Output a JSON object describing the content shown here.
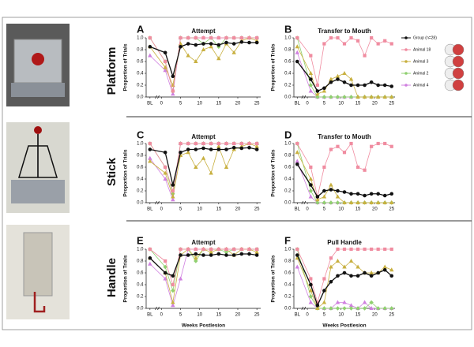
{
  "rows": [
    "Platform",
    "Stick",
    "Handle"
  ],
  "legend": [
    {
      "name": "Group (n=28)",
      "color": "#111111"
    },
    {
      "name": "Animal 18",
      "color": "#f08ca0"
    },
    {
      "name": "Animal 3",
      "color": "#c8b040"
    },
    {
      "name": "Animal 2",
      "color": "#90d070"
    },
    {
      "name": "Animal 4",
      "color": "#d080e0"
    }
  ],
  "chart_data": [
    {
      "type": "line",
      "panel": "A",
      "title": "Attempt",
      "ylabel": "Proportion of Trials",
      "x": [
        -3,
        1,
        3,
        5,
        7,
        9,
        11,
        13,
        15,
        17,
        19,
        21,
        23,
        25
      ],
      "xlim": [
        -4,
        26
      ],
      "xticks": [
        {
          "value": -3,
          "label": "BL"
        },
        0,
        5,
        10,
        15,
        20,
        25
      ],
      "ylim": [
        0,
        1
      ],
      "yticks": [
        {
          "value": 0,
          "label": "0.0"
        },
        {
          "value": 0.2,
          "label": "0.2"
        },
        {
          "value": 0.4,
          "label": "0.4"
        },
        {
          "value": 0.6,
          "label": "0.6"
        },
        {
          "value": 0.8,
          "label": "0.8"
        },
        {
          "value": 1,
          "label": "1.0"
        }
      ],
      "series": [
        {
          "values": [
            0.85,
            0.75,
            0.35,
            0.85,
            0.9,
            0.88,
            0.9,
            0.9,
            0.88,
            0.92,
            0.9,
            0.93,
            0.92,
            0.92
          ]
        },
        {
          "values": [
            1,
            0.6,
            0.1,
            1,
            1,
            1,
            1,
            1,
            1,
            1,
            1,
            1,
            1,
            1
          ]
        },
        {
          "values": [
            0.85,
            0.5,
            0.2,
            0.9,
            0.7,
            0.6,
            0.8,
            0.85,
            0.65,
            0.9,
            0.75,
            0.95,
            1,
            0.95
          ]
        },
        {
          "values": [
            1,
            0.6,
            0.1,
            1,
            1,
            1,
            0.9,
            1,
            0.85,
            1,
            1,
            1,
            1,
            1
          ]
        },
        {
          "values": [
            0.7,
            0.45,
            0.05,
            1,
            1,
            1,
            1,
            1,
            1,
            1,
            1,
            1,
            1,
            1
          ]
        }
      ]
    },
    {
      "type": "line",
      "panel": "B",
      "title": "Transfer to Mouth",
      "ylabel": "Proportion of Trials",
      "x": [
        -3,
        1,
        3,
        5,
        7,
        9,
        11,
        13,
        15,
        17,
        19,
        21,
        23,
        25
      ],
      "xlim": [
        -4,
        26
      ],
      "xticks": [
        {
          "value": -3,
          "label": "BL"
        },
        0,
        5,
        10,
        15,
        20,
        25
      ],
      "ylim": [
        0,
        1
      ],
      "yticks": [
        {
          "value": 0,
          "label": "0.0"
        },
        {
          "value": 0.2,
          "label": "0.2"
        },
        {
          "value": 0.4,
          "label": "0.4"
        },
        {
          "value": 0.6,
          "label": "0.6"
        },
        {
          "value": 0.8,
          "label": "0.8"
        },
        {
          "value": 1,
          "label": "1.0"
        }
      ],
      "series": [
        {
          "values": [
            0.6,
            0.3,
            0.1,
            0.15,
            0.25,
            0.3,
            0.25,
            0.2,
            0.2,
            0.2,
            0.25,
            0.2,
            0.2,
            0.18
          ]
        },
        {
          "values": [
            1,
            0.7,
            0.2,
            0.9,
            1,
            1,
            0.9,
            1,
            0.95,
            0.7,
            1,
            0.9,
            0.95,
            0.9
          ]
        },
        {
          "values": [
            0.85,
            0.4,
            0.05,
            0.1,
            0.3,
            0.35,
            0.4,
            0.3,
            0,
            0,
            0,
            0,
            0,
            0
          ]
        },
        {
          "values": [
            1,
            0.2,
            0,
            0,
            0,
            0,
            0,
            0,
            0,
            0,
            0,
            0,
            0,
            0
          ]
        },
        {
          "values": [
            0.75,
            0.1,
            0,
            0,
            0,
            0,
            0,
            0,
            0,
            0,
            0,
            0,
            0,
            0
          ]
        }
      ]
    },
    {
      "type": "line",
      "panel": "C",
      "title": "Attempt",
      "ylabel": "Proportion of Trials",
      "x": [
        -3,
        1,
        3,
        5,
        7,
        9,
        11,
        13,
        15,
        17,
        19,
        21,
        23,
        25
      ],
      "xlim": [
        -4,
        26
      ],
      "xticks": [
        {
          "value": -3,
          "label": "BL"
        },
        0,
        5,
        10,
        15,
        20,
        25
      ],
      "ylim": [
        0,
        1
      ],
      "yticks": [
        {
          "value": 0,
          "label": "0.0"
        },
        {
          "value": 0.2,
          "label": "0.2"
        },
        {
          "value": 0.4,
          "label": "0.4"
        },
        {
          "value": 0.6,
          "label": "0.6"
        },
        {
          "value": 0.8,
          "label": "0.8"
        },
        {
          "value": 1,
          "label": "1.0"
        }
      ],
      "series": [
        {
          "values": [
            0.9,
            0.85,
            0.3,
            0.85,
            0.9,
            0.9,
            0.92,
            0.9,
            0.9,
            0.9,
            0.93,
            0.92,
            0.93,
            0.9
          ]
        },
        {
          "values": [
            1,
            0.6,
            0.2,
            1,
            1,
            1,
            1,
            1,
            1,
            1,
            1,
            1,
            1,
            1
          ]
        },
        {
          "values": [
            0.7,
            0.5,
            0.1,
            0.8,
            0.85,
            0.6,
            0.75,
            0.5,
            0.95,
            0.6,
            0.9,
            0.95,
            1,
            0.95
          ]
        },
        {
          "values": [
            1,
            0.6,
            0.15,
            1,
            1,
            1,
            1,
            1,
            1,
            1,
            1,
            1,
            1,
            1
          ]
        },
        {
          "values": [
            0.75,
            0.4,
            0.05,
            1,
            1,
            1,
            1,
            1,
            1,
            1,
            1,
            1,
            1,
            1
          ]
        }
      ]
    },
    {
      "type": "line",
      "panel": "D",
      "title": "Transfer to Mouth",
      "ylabel": "Proportion of Trials",
      "x": [
        -3,
        1,
        3,
        5,
        7,
        9,
        11,
        13,
        15,
        17,
        19,
        21,
        23,
        25
      ],
      "xlim": [
        -4,
        26
      ],
      "xticks": [
        {
          "value": -3,
          "label": "BL"
        },
        0,
        5,
        10,
        15,
        20,
        25
      ],
      "ylim": [
        0,
        1
      ],
      "yticks": [
        {
          "value": 0,
          "label": "0.0"
        },
        {
          "value": 0.2,
          "label": "0.2"
        },
        {
          "value": 0.4,
          "label": "0.4"
        },
        {
          "value": 0.6,
          "label": "0.6"
        },
        {
          "value": 0.8,
          "label": "0.8"
        },
        {
          "value": 1,
          "label": "1.0"
        }
      ],
      "series": [
        {
          "values": [
            0.65,
            0.3,
            0.1,
            0.2,
            0.22,
            0.2,
            0.18,
            0.15,
            0.15,
            0.12,
            0.15,
            0.15,
            0.12,
            0.15
          ]
        },
        {
          "values": [
            1,
            0.6,
            0.1,
            0.6,
            0.9,
            0.95,
            0.85,
            1,
            0.6,
            0.55,
            0.95,
            1,
            1,
            0.95
          ]
        },
        {
          "values": [
            0.85,
            0.4,
            0.05,
            0.1,
            0.3,
            0.1,
            0,
            0,
            0,
            0,
            0,
            0,
            0,
            0
          ]
        },
        {
          "values": [
            1,
            0.2,
            0,
            0,
            0,
            0,
            0,
            0,
            0,
            0,
            0,
            0,
            0,
            0
          ]
        },
        {
          "values": [
            0.7,
            0.1,
            0,
            0,
            0,
            0,
            0,
            0,
            0,
            0,
            0,
            0,
            0,
            0
          ]
        }
      ]
    },
    {
      "type": "line",
      "panel": "E",
      "title": "Attempt",
      "ylabel": "Proportion of Trials",
      "xlabel": "Weeks Postlesion",
      "x": [
        -3,
        1,
        3,
        5,
        7,
        9,
        11,
        13,
        15,
        17,
        19,
        21,
        23,
        25
      ],
      "xlim": [
        -4,
        26
      ],
      "xticks": [
        {
          "value": -3,
          "label": "BL"
        },
        0,
        5,
        10,
        15,
        20,
        25
      ],
      "ylim": [
        0,
        1
      ],
      "yticks": [
        {
          "value": 0,
          "label": "0.0"
        },
        {
          "value": 0.2,
          "label": "0.2"
        },
        {
          "value": 0.4,
          "label": "0.4"
        },
        {
          "value": 0.6,
          "label": "0.6"
        },
        {
          "value": 0.8,
          "label": "0.8"
        },
        {
          "value": 1,
          "label": "1.0"
        }
      ],
      "series": [
        {
          "values": [
            0.85,
            0.6,
            0.55,
            0.9,
            0.9,
            0.92,
            0.9,
            0.9,
            0.92,
            0.9,
            0.9,
            0.92,
            0.92,
            0.9
          ]
        },
        {
          "values": [
            1,
            0.8,
            0.4,
            1,
            1,
            1,
            1,
            1,
            1,
            1,
            1,
            1,
            1,
            1
          ]
        },
        {
          "values": [
            0.85,
            0.6,
            0.1,
            0.9,
            1,
            0.85,
            1,
            0.95,
            1,
            1,
            0.9,
            1,
            1,
            0.95
          ]
        },
        {
          "values": [
            1,
            0.7,
            0.3,
            1,
            1,
            0.8,
            1,
            1,
            1,
            0.95,
            1,
            1,
            1,
            1
          ]
        },
        {
          "values": [
            0.75,
            0.5,
            0.05,
            0.5,
            1,
            1,
            1,
            1,
            1,
            1,
            1,
            1,
            1,
            1
          ]
        }
      ]
    },
    {
      "type": "line",
      "panel": "F",
      "title": "Pull Handle",
      "ylabel": "Proportion of Trials",
      "xlabel": "Weeks Postlesion",
      "x": [
        -3,
        1,
        3,
        5,
        7,
        9,
        11,
        13,
        15,
        17,
        19,
        21,
        23,
        25
      ],
      "xlim": [
        -4,
        26
      ],
      "xticks": [
        {
          "value": -3,
          "label": "BL"
        },
        0,
        5,
        10,
        15,
        20,
        25
      ],
      "ylim": [
        0,
        1
      ],
      "yticks": [
        {
          "value": 0,
          "label": "0.0"
        },
        {
          "value": 0.2,
          "label": "0.2"
        },
        {
          "value": 0.4,
          "label": "0.4"
        },
        {
          "value": 0.6,
          "label": "0.6"
        },
        {
          "value": 0.8,
          "label": "0.8"
        },
        {
          "value": 1,
          "label": "1.0"
        }
      ],
      "series": [
        {
          "values": [
            0.9,
            0.4,
            0.05,
            0.3,
            0.45,
            0.55,
            0.6,
            0.55,
            0.55,
            0.6,
            0.55,
            0.6,
            0.65,
            0.55
          ]
        },
        {
          "values": [
            1,
            0.5,
            0.1,
            0.5,
            0.85,
            1,
            1,
            1,
            1,
            1,
            1,
            1,
            1,
            1
          ]
        },
        {
          "values": [
            0.85,
            0.3,
            0,
            0.1,
            0.7,
            0.8,
            0.7,
            0.8,
            0.7,
            0.6,
            0.6,
            0.6,
            0.7,
            0.65
          ]
        },
        {
          "values": [
            1,
            0.2,
            0,
            0,
            0,
            0,
            0,
            0,
            0,
            0,
            0.1,
            0,
            0,
            0
          ]
        },
        {
          "values": [
            0.7,
            0.1,
            0,
            0,
            0,
            0.1,
            0.1,
            0.05,
            0,
            0.1,
            0,
            0,
            0,
            0
          ]
        }
      ]
    }
  ]
}
